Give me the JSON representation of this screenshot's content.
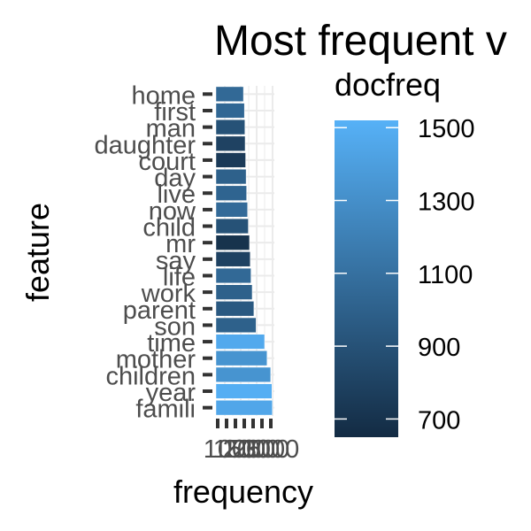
{
  "chart_data": {
    "type": "bar",
    "orientation": "horizontal",
    "title": "Most frequent v",
    "xlabel": "frequency",
    "ylabel": "feature",
    "categories": [
      "home",
      "first",
      "man",
      "daughter",
      "court",
      "day",
      "live",
      "now",
      "child",
      "mr",
      "say",
      "life",
      "work",
      "parent",
      "son",
      "time",
      "mother",
      "children",
      "year",
      "famili"
    ],
    "values": [
      1130,
      1170,
      1190,
      1200,
      1220,
      1240,
      1260,
      1300,
      1330,
      1380,
      1410,
      1440,
      1490,
      1560,
      1650,
      2000,
      2100,
      2250,
      2300,
      2320
    ],
    "docfreq": [
      1050,
      1040,
      900,
      800,
      750,
      1000,
      1020,
      1060,
      900,
      700,
      800,
      1050,
      1000,
      950,
      1000,
      1470,
      1330,
      1330,
      1500,
      1450
    ],
    "xticks": [
      "1000",
      "1500",
      "2000",
      "2500",
      "3000"
    ],
    "xlim": [
      0,
      2400
    ],
    "grid": true,
    "legend": {
      "title": "docfreq",
      "position": "right",
      "ticks": [
        "700",
        "900",
        "1100",
        "1300",
        "1500"
      ],
      "range": [
        650,
        1520
      ],
      "color_low": "#132B43",
      "color_high": "#56B1F7"
    }
  }
}
